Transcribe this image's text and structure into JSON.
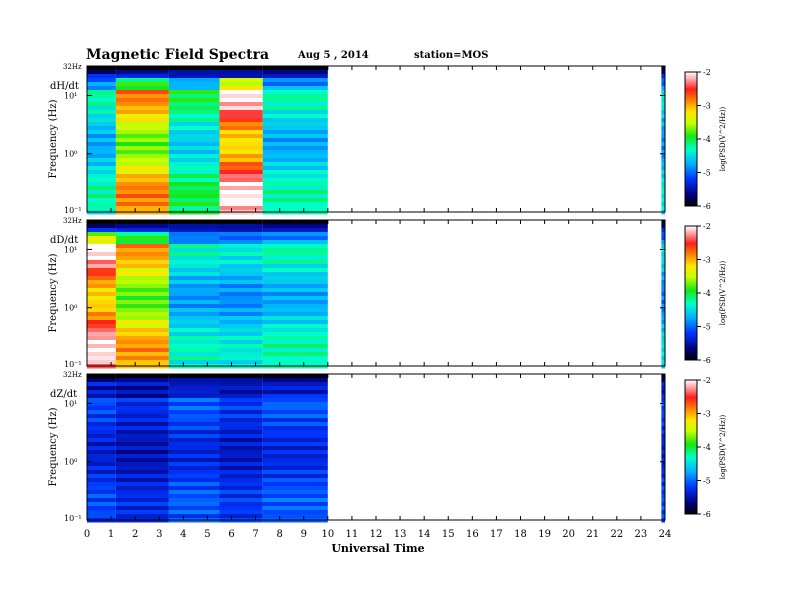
{
  "header": {
    "title": "Magnetic Field Spectra",
    "date": "Aug 5 , 2014",
    "station": "station=MOS"
  },
  "chart_data": {
    "type": "heatmap",
    "xlabel": "Universal Time",
    "x_ticks": [
      "0",
      "1",
      "2",
      "3",
      "4",
      "5",
      "6",
      "7",
      "8",
      "9",
      "10",
      "11",
      "12",
      "13",
      "14",
      "15",
      "16",
      "17",
      "18",
      "19",
      "20",
      "21",
      "22",
      "23",
      "24"
    ],
    "xlim": [
      0,
      24
    ],
    "y_scale": "log",
    "ylim": [
      0.1,
      32
    ],
    "colorbar": {
      "label": "log(PSD(V^2/Hz))",
      "range": [
        -6,
        -2
      ],
      "ticks": [
        "-2",
        "-3",
        "-4",
        "-5",
        "-6"
      ]
    },
    "panels": [
      {
        "name": "dH/dt",
        "ylabel": "Frequency (Hz)",
        "y_top_label": "32Hz",
        "y_ticks": [
          "10¹",
          "10⁰",
          "10⁻¹"
        ],
        "segments": [
          {
            "start": 0.0,
            "end": 1.2,
            "level": 0.44
          },
          {
            "start": 1.2,
            "end": 3.4,
            "level": 0.8
          },
          {
            "start": 3.4,
            "end": 5.5,
            "level": 0.5
          },
          {
            "start": 5.5,
            "end": 7.3,
            "level": 1.0
          },
          {
            "start": 7.3,
            "end": 10.0,
            "level": 0.44
          }
        ],
        "late_segment": {
          "start": 23.85,
          "end": 24.0,
          "level": 0.4
        }
      },
      {
        "name": "dD/dt",
        "ylabel": "Frequency (Hz)",
        "y_top_label": "32Hz",
        "y_ticks": [
          "10¹",
          "10⁰",
          "10⁻¹"
        ],
        "segments": [
          {
            "start": 0.0,
            "end": 1.2,
            "level": 1.0
          },
          {
            "start": 1.2,
            "end": 3.4,
            "level": 0.78
          },
          {
            "start": 3.4,
            "end": 5.5,
            "level": 0.42
          },
          {
            "start": 5.5,
            "end": 7.3,
            "level": 0.4
          },
          {
            "start": 7.3,
            "end": 10.0,
            "level": 0.44
          }
        ],
        "late_segment": {
          "start": 23.85,
          "end": 24.0,
          "level": 0.38
        }
      },
      {
        "name": "dZ/dt",
        "ylabel": "Frequency (Hz)",
        "y_top_label": "32Hz",
        "y_ticks": [
          "10¹",
          "10⁰",
          "10⁻¹"
        ],
        "segments": [
          {
            "start": 0.0,
            "end": 1.2,
            "level": 0.22
          },
          {
            "start": 1.2,
            "end": 3.4,
            "level": 0.18
          },
          {
            "start": 3.4,
            "end": 5.5,
            "level": 0.24
          },
          {
            "start": 5.5,
            "end": 7.3,
            "level": 0.2
          },
          {
            "start": 7.3,
            "end": 10.0,
            "level": 0.24
          }
        ],
        "late_segment": {
          "start": 23.85,
          "end": 24.0,
          "level": 0.22
        }
      }
    ]
  }
}
